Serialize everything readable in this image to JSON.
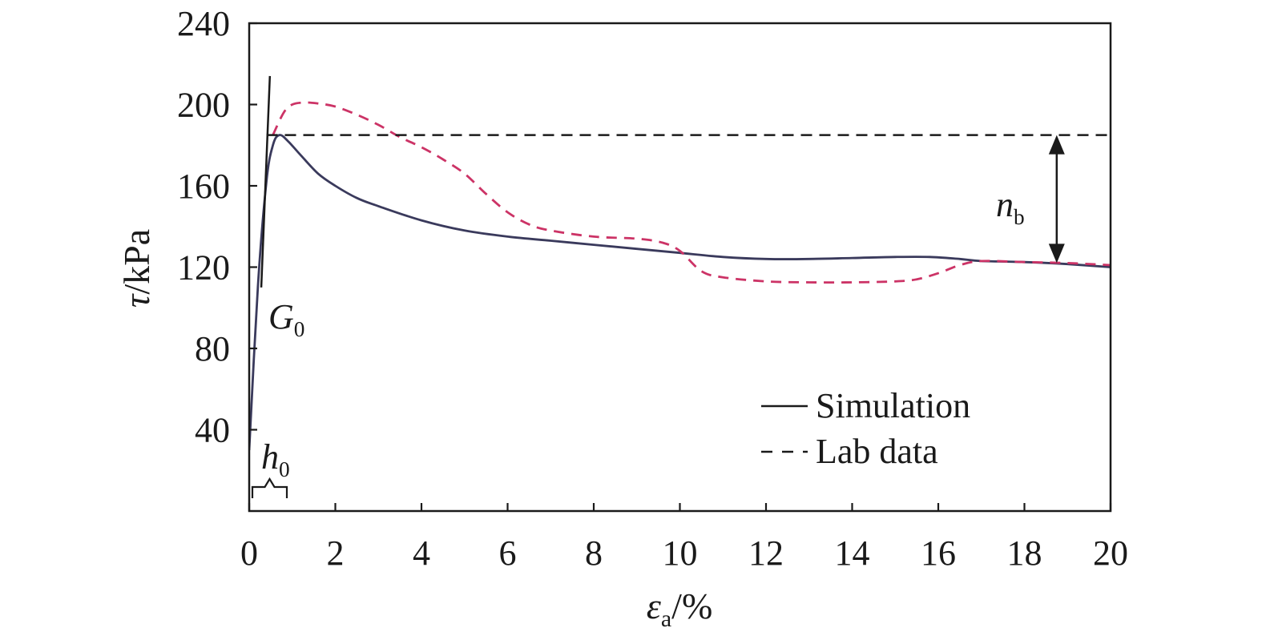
{
  "chart_data": {
    "type": "line",
    "xlabel": {
      "symbol": "ε",
      "subscript": "a",
      "unit": "/%"
    },
    "ylabel": {
      "symbol": "τ",
      "unit": "/kPa"
    },
    "xlim": [
      0,
      20
    ],
    "ylim": [
      0,
      240
    ],
    "xticks": [
      0,
      2,
      4,
      6,
      8,
      10,
      12,
      14,
      16,
      18,
      20
    ],
    "yticks": [
      40,
      80,
      120,
      160,
      200,
      240
    ],
    "grid": false,
    "legend_position": "bottom-right",
    "series": [
      {
        "name": "Simulation",
        "style": "solid",
        "color": "#3a3a5c",
        "x": [
          0,
          0.2,
          0.4,
          0.55,
          0.7,
          0.9,
          1.2,
          1.6,
          2.0,
          2.5,
          3.0,
          4.0,
          5.0,
          6.0,
          7.0,
          8.0,
          9.0,
          10.0,
          11.0,
          12.0,
          13.0,
          14.0,
          15.0,
          15.8,
          16.5,
          17.0,
          18.0,
          19.0,
          20.0
        ],
        "y": [
          30,
          110,
          162,
          180,
          185,
          182,
          175,
          166,
          160,
          154,
          150,
          143,
          138,
          135,
          133,
          131,
          129,
          127,
          125,
          124,
          124,
          124.5,
          125,
          125,
          124,
          123,
          122.5,
          121.5,
          120
        ]
      },
      {
        "name": "Lab data",
        "style": "dashed",
        "color": "#cc3366",
        "x": [
          0.55,
          0.8,
          1.0,
          1.3,
          1.6,
          2.0,
          2.5,
          3.0,
          3.5,
          4.0,
          4.5,
          5.0,
          5.5,
          6.0,
          6.5,
          7.0,
          8.0,
          9.0,
          9.6,
          10.0,
          10.5,
          11.0,
          12.0,
          13.0,
          14.0,
          15.0,
          15.5,
          16.0,
          16.5,
          17.0,
          18.0,
          19.0,
          20.0
        ],
        "y": [
          185,
          196,
          200,
          201,
          200.5,
          199,
          195,
          190,
          184,
          179,
          173,
          166,
          156,
          147,
          141,
          138,
          135,
          134,
          132,
          128,
          118,
          115,
          113,
          112.5,
          112.5,
          113,
          114,
          117,
          121,
          123,
          122.5,
          122,
          121
        ]
      }
    ],
    "reference_line": {
      "y": 185,
      "style": "dashed"
    },
    "tangent_line": {
      "x": [
        0.28,
        0.48
      ],
      "y": [
        110,
        214
      ]
    },
    "annotations": {
      "g0": {
        "main": "G",
        "sub": "0",
        "x": 0.55,
        "y": 85
      },
      "h0": {
        "main": "h",
        "sub": "0",
        "x": 0.4,
        "y": 22,
        "bracket_x": [
          0,
          0.8
        ]
      },
      "nb": {
        "main": "n",
        "sub": "b",
        "arrow_x": 18.75,
        "arrow_y": [
          185,
          122
        ]
      }
    }
  }
}
